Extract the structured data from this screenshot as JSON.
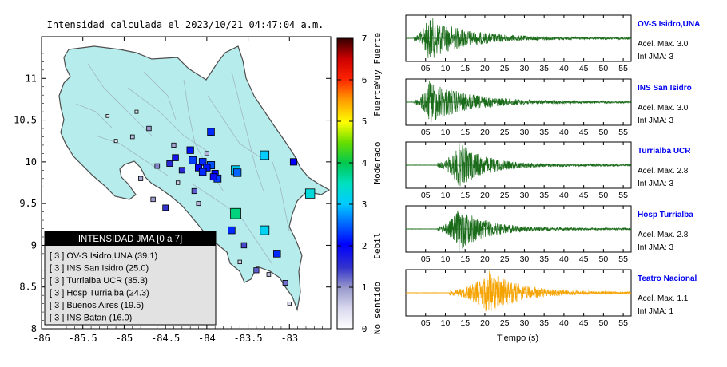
{
  "map": {
    "title": "Intensidad calculada el 2023/10/21_04:47:04_a.m.",
    "x_ticks": [
      "-86",
      "-85.5",
      "-85",
      "-84.5",
      "-84",
      "-83.5",
      "-83"
    ],
    "y_ticks": [
      "8",
      "8.5",
      "9",
      "9.5",
      "10",
      "10.5",
      "11"
    ],
    "xlim": [
      -86,
      -82.5
    ],
    "ylim": [
      8,
      11.5
    ],
    "legend": {
      "title": "INTENSIDAD JMA [0 a 7]",
      "items": [
        "[ 3 ]  OV-S Isidro,UNA (39.1)",
        "[ 3 ]  INS San Isidro (25.0)",
        "[ 3 ]  Turrialba UCR (35.3)",
        "[ 3 ]  Hosp Turrialba (24.3)",
        "[ 3 ]  Buenos Aires (19.5)",
        "[ 3 ]  INS Batan (16.0)"
      ]
    },
    "colors": {
      "land": "#b6ecec",
      "border": "#4d4d4d",
      "rivers": "#9fb8c4"
    }
  },
  "colorbar": {
    "ticks": [
      "0",
      "1",
      "2",
      "3",
      "4",
      "5",
      "6",
      "7"
    ],
    "labels": [
      {
        "text": "No sentido",
        "from": 0,
        "to": 1
      },
      {
        "text": "Debil",
        "from": 1,
        "to": 3
      },
      {
        "text": "Moderado",
        "from": 3,
        "to": 5
      },
      {
        "text": "Fuerte",
        "from": 5,
        "to": 6
      },
      {
        "text": "Muy Fuerte",
        "from": 6,
        "to": 7
      }
    ]
  },
  "chart_data": [
    {
      "type": "scatter",
      "title": "Intensidad calculada el 2023/10/21_04:47:04_a.m.",
      "xlim": [
        -86,
        -82.5
      ],
      "ylim": [
        8,
        11.5
      ],
      "series": [
        {
          "values": [
            {
              "x": -83.95,
              "y": 10.36,
              "i": 2.2
            },
            {
              "x": -84.38,
              "y": 10.05,
              "i": 1.8
            },
            {
              "x": -84.2,
              "y": 10.14,
              "i": 2.1
            },
            {
              "x": -84.17,
              "y": 10.02,
              "i": 2.3
            },
            {
              "x": -84.05,
              "y": 10.0,
              "i": 2.2
            },
            {
              "x": -84.1,
              "y": 9.93,
              "i": 2.0
            },
            {
              "x": -83.95,
              "y": 9.96,
              "i": 2.4
            },
            {
              "x": -84.0,
              "y": 9.93,
              "i": 2.1
            },
            {
              "x": -84.05,
              "y": 9.88,
              "i": 2.2
            },
            {
              "x": -83.9,
              "y": 9.86,
              "i": 2.0
            },
            {
              "x": -83.87,
              "y": 9.8,
              "i": 2.3
            },
            {
              "x": -83.92,
              "y": 9.82,
              "i": 1.9
            },
            {
              "x": -83.65,
              "y": 9.9,
              "i": 3.1
            },
            {
              "x": -83.63,
              "y": 9.87,
              "i": 2.5
            },
            {
              "x": -83.3,
              "y": 10.08,
              "i": 3.0
            },
            {
              "x": -82.95,
              "y": 10.0,
              "i": 2.0
            },
            {
              "x": -82.75,
              "y": 9.62,
              "i": 3.3
            },
            {
              "x": -83.65,
              "y": 9.38,
              "i": 3.8
            },
            {
              "x": -83.3,
              "y": 9.18,
              "i": 3.1
            },
            {
              "x": -83.7,
              "y": 9.18,
              "i": 2.2
            },
            {
              "x": -83.15,
              "y": 8.9,
              "i": 2.2
            },
            {
              "x": -84.45,
              "y": 9.98,
              "i": 1.6
            },
            {
              "x": -84.3,
              "y": 9.9,
              "i": 1.6
            },
            {
              "x": -84.5,
              "y": 9.45,
              "i": 1.5
            },
            {
              "x": -84.15,
              "y": 9.65,
              "i": 1.3
            },
            {
              "x": -83.55,
              "y": 9.0,
              "i": 1.4
            },
            {
              "x": -83.4,
              "y": 8.7,
              "i": 1.3
            },
            {
              "x": -83.05,
              "y": 8.55,
              "i": 1.2
            },
            {
              "x": -83.25,
              "y": 8.65,
              "i": 0.7
            },
            {
              "x": -84.7,
              "y": 10.4,
              "i": 1.0
            },
            {
              "x": -84.4,
              "y": 10.2,
              "i": 0.9
            },
            {
              "x": -84.0,
              "y": 10.1,
              "i": 0.8
            },
            {
              "x": -84.6,
              "y": 9.95,
              "i": 1.1
            },
            {
              "x": -84.8,
              "y": 9.8,
              "i": 0.9
            },
            {
              "x": -84.65,
              "y": 9.55,
              "i": 1.0
            },
            {
              "x": -84.35,
              "y": 9.75,
              "i": 0.6
            },
            {
              "x": -84.85,
              "y": 10.6,
              "i": 0.4
            },
            {
              "x": -85.1,
              "y": 10.25,
              "i": 0.4
            },
            {
              "x": -84.9,
              "y": 10.3,
              "i": 0.7
            },
            {
              "x": -85.2,
              "y": 10.55,
              "i": 0.3
            },
            {
              "x": -83.6,
              "y": 8.8,
              "i": 0.6
            },
            {
              "x": -83.0,
              "y": 8.3,
              "i": 0.5
            },
            {
              "x": -84.1,
              "y": 9.5,
              "i": 0.8
            }
          ]
        }
      ]
    },
    {
      "type": "line",
      "xlabel": "Tiempo (s)",
      "x_ticks": [
        "05",
        "10",
        "15",
        "20",
        "25",
        "30",
        "35",
        "40",
        "45",
        "50",
        "55"
      ],
      "xlim": [
        0,
        57
      ],
      "series": [
        {
          "name": "OV-S Isidro,UNA",
          "acel_label": "Acel. Max. 3.0",
          "jma_label": "Int JMA: 3",
          "color": "#1a6b1a",
          "onset": 2.0,
          "peak": 5.8,
          "duration": 55
        },
        {
          "name": "INS San Isidro",
          "acel_label": "Acel. Max. 3.0",
          "jma_label": "Int JMA: 3",
          "color": "#1a6b1a",
          "onset": 2.0,
          "peak": 6.0,
          "duration": 55
        },
        {
          "name": "Turrialba UCR",
          "acel_label": "Acel. Max. 2.8",
          "jma_label": "Int JMA: 3",
          "color": "#1a6b1a",
          "onset": 8.0,
          "peak": 13.5,
          "duration": 40
        },
        {
          "name": "Hosp Turrialba",
          "acel_label": "Acel. Max. 2.8",
          "jma_label": "Int JMA: 3",
          "color": "#1a6b1a",
          "onset": 8.0,
          "peak": 13.5,
          "duration": 40
        },
        {
          "name": "Teatro Nacional",
          "acel_label": "Acel. Max. 1.1",
          "jma_label": "Int JMA: 1",
          "color": "#f5a300",
          "onset": 11.0,
          "peak": 21.0,
          "duration": 45
        }
      ]
    }
  ]
}
